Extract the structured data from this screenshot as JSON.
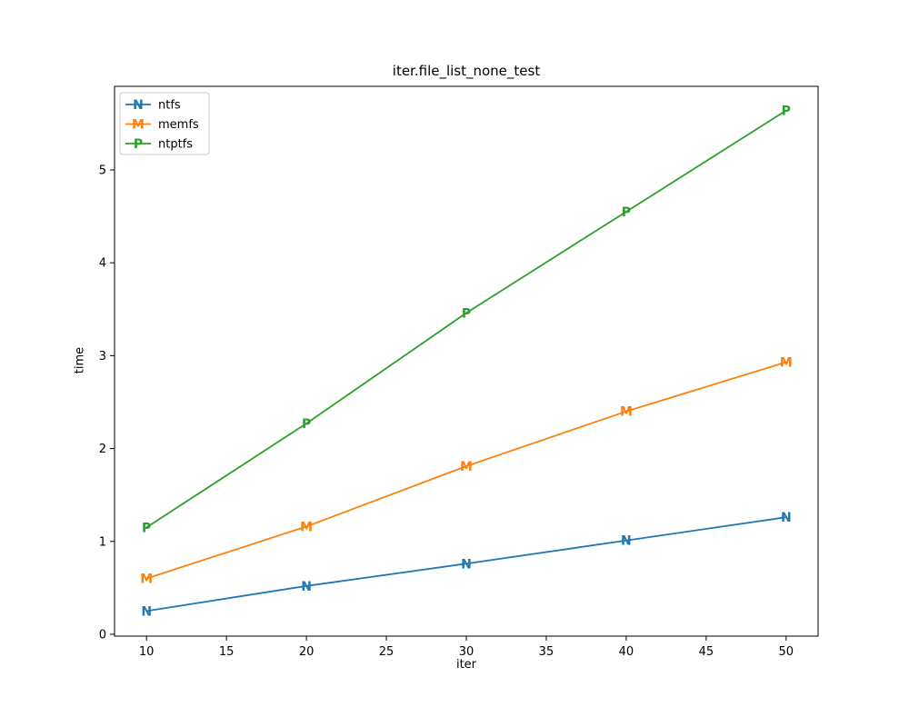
{
  "figure": {
    "background": "#ffffff",
    "spine_color": "#000000",
    "legend_border_color": "#cccccc"
  },
  "chart_data": {
    "type": "line",
    "title": "iter.file_list_none_test",
    "xlabel": "iter",
    "ylabel": "time",
    "x": [
      10,
      20,
      30,
      40,
      50
    ],
    "series": [
      {
        "name": "ntfs",
        "marker": "N",
        "color": "#1f77b4",
        "values": [
          0.25,
          0.52,
          0.76,
          1.01,
          1.26
        ]
      },
      {
        "name": "memfs",
        "marker": "M",
        "color": "#ff7f0e",
        "values": [
          0.6,
          1.16,
          1.81,
          2.4,
          2.93
        ]
      },
      {
        "name": "ntptfs",
        "marker": "P",
        "color": "#2ca02c",
        "values": [
          1.15,
          2.27,
          3.46,
          4.55,
          5.64
        ]
      }
    ],
    "xticks": [
      10,
      15,
      20,
      25,
      30,
      35,
      40,
      45,
      50
    ],
    "yticks": [
      0,
      1,
      2,
      3,
      4,
      5
    ],
    "xlim": [
      8,
      52
    ],
    "ylim": [
      -0.02,
      5.9
    ],
    "grid": false,
    "legend_position": "upper left"
  }
}
